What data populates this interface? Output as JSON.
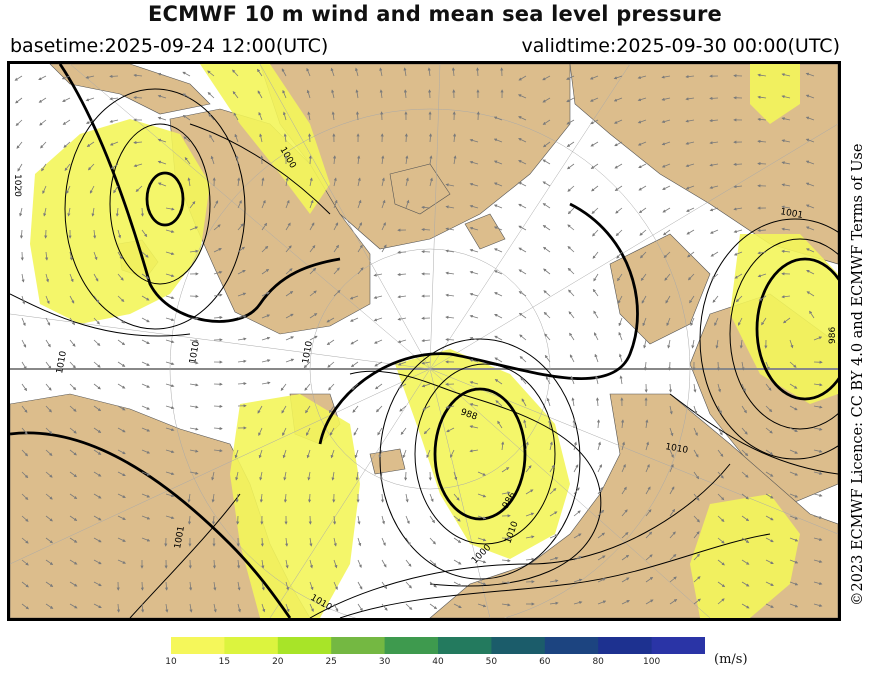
{
  "header": {
    "title": "ECMWF 10 m wind and mean sea level pressure",
    "basetime": "basetime:2025-09-24 12:00(UTC)",
    "validtime": "validtime:2025-09-30 00:00(UTC)"
  },
  "license": "©2023 ECMWF Licence: CC BY 4.0 and ECMWF Terms of Use",
  "map": {
    "colors": {
      "land": "#dcbd8c",
      "sea": "#ffffff",
      "wind": "#f3f55a",
      "isobar": "#000000",
      "arrow": "#7a7a7a"
    },
    "isobar_labels": [
      "1020",
      "1000",
      "1010",
      "1010",
      "1010",
      "988",
      "986",
      "1000",
      "1010",
      "1010",
      "1001",
      "1010",
      "986",
      "1001"
    ]
  },
  "colorbar": {
    "unit": "(m/s)",
    "ticks": [
      "10",
      "15",
      "20",
      "25",
      "30",
      "40",
      "50",
      "60",
      "80",
      "100"
    ],
    "colors": [
      "#f5f75a",
      "#dcf43e",
      "#a8e428",
      "#74b842",
      "#3e9a4e",
      "#237a5e",
      "#1b5c6a",
      "#1c4480",
      "#1d3190",
      "#2a34a6"
    ]
  }
}
